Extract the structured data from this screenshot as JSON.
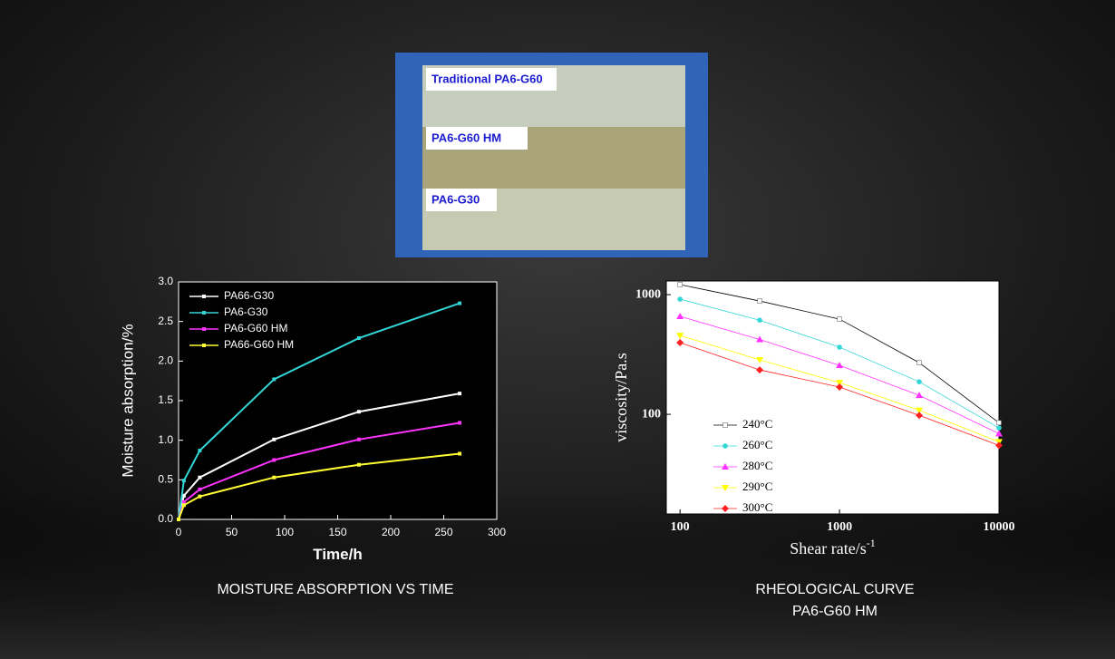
{
  "photo": {
    "labels": [
      "Traditional PA6-G60",
      "PA6-G60 HM",
      "PA6-G30"
    ]
  },
  "chart_data": [
    {
      "type": "line",
      "xlabel": "Time/h",
      "ylabel": "Moisture absorption/%",
      "caption": [
        "MOISTURE ABSORPTION VS TIME"
      ],
      "x": [
        0,
        5,
        20,
        90,
        170,
        265
      ],
      "series": [
        {
          "name": "PA66-G30",
          "color": "#ffffff",
          "values": [
            0,
            0.3,
            0.53,
            1.01,
            1.36,
            1.59
          ]
        },
        {
          "name": "PA6-G30",
          "color": "#33d6d6",
          "values": [
            0,
            0.49,
            0.87,
            1.77,
            2.29,
            2.73
          ]
        },
        {
          "name": "PA6-G60 HM",
          "color": "#ff33ff",
          "values": [
            0,
            0.22,
            0.38,
            0.75,
            1.01,
            1.22
          ]
        },
        {
          "name": "PA66-G60 HM",
          "color": "#ffff33",
          "values": [
            0,
            0.18,
            0.29,
            0.53,
            0.69,
            0.83
          ]
        }
      ],
      "xlim": [
        0,
        300
      ],
      "xticks": [
        0,
        50,
        100,
        150,
        200,
        250,
        300
      ],
      "ylim": [
        0,
        3
      ],
      "yticks": [
        {
          "value": 0,
          "label": "0.0"
        },
        0.5,
        {
          "value": 1,
          "label": "1.0"
        },
        1.5,
        {
          "value": 2,
          "label": "2.0"
        },
        2.5,
        {
          "value": 3,
          "label": "3.0"
        }
      ],
      "legend": "upper left",
      "plot_background": "#000000",
      "axis_color": "#ffffff"
    },
    {
      "type": "line",
      "xlabel": "Shear rate/s",
      "xlabel_sup": "-1",
      "ylabel": "viscosity/Pa.s",
      "caption": [
        "RHEOLOGICAL CURVE",
        "PA6-G60 HM"
      ],
      "x": [
        100,
        316,
        1000,
        3162,
        10000
      ],
      "series": [
        {
          "name": "240°C",
          "color": "#ffffff",
          "marker": "square",
          "values": [
            1212,
            885,
            624,
            270,
            85
          ]
        },
        {
          "name": "260°C",
          "color": "#33d6d6",
          "marker": "circle",
          "values": [
            916,
            612,
            364,
            187,
            77
          ]
        },
        {
          "name": "280°C",
          "color": "#ff33ff",
          "marker": "triangle-up",
          "values": [
            659,
            422,
            256,
            144,
            69
          ]
        },
        {
          "name": "290°C",
          "color": "#ffff00",
          "marker": "triangle-down",
          "values": [
            456,
            285,
            184,
            108,
            59
          ]
        },
        {
          "name": "300°C",
          "color": "#ff2020",
          "marker": "diamond",
          "values": [
            397,
            235,
            169,
            98,
            55
          ]
        }
      ],
      "xlim": [
        82,
        10000
      ],
      "xticks": [
        100,
        1000,
        10000
      ],
      "xscale": "log",
      "ylim": [
        14.7,
        1300
      ],
      "yticks": [
        100,
        1000
      ],
      "yscale": "log",
      "legend": "lower left",
      "plot_background": "#ffffff",
      "axis_color": "#000000"
    }
  ]
}
